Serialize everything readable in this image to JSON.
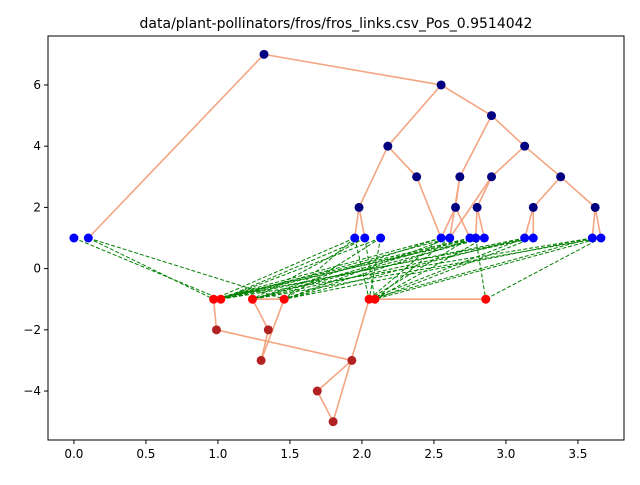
{
  "chart_data": {
    "type": "scatter",
    "title": "data/plant-pollinators/fros/fros_links.csv_Pos_0.9514042",
    "xlabel": "",
    "ylabel": "",
    "xlim": [
      -0.18,
      3.82
    ],
    "ylim": [
      -5.6,
      7.6
    ],
    "xticks": [
      0.0,
      0.5,
      1.0,
      1.5,
      2.0,
      2.5,
      3.0,
      3.5
    ],
    "xtick_labels": [
      "0.0",
      "0.5",
      "1.0",
      "1.5",
      "2.0",
      "2.5",
      "3.0",
      "3.5"
    ],
    "yticks": [
      -4,
      -2,
      0,
      2,
      4,
      6
    ],
    "ytick_labels": [
      "−4",
      "−2",
      "0",
      "2",
      "4",
      "6"
    ],
    "grid": false,
    "legend": "none",
    "colors": {
      "tree_edge": "#f4a582",
      "link_edge": "#008000",
      "blue_node": "#0000ff",
      "navy_node": "#000080",
      "red_node": "#ff0000",
      "brown_node": "#b22222"
    },
    "nodes": [
      {
        "x": 1.32,
        "y": 7,
        "color": "#000080"
      },
      {
        "x": 2.55,
        "y": 6,
        "color": "#000080"
      },
      {
        "x": 2.9,
        "y": 5,
        "color": "#000080"
      },
      {
        "x": 2.18,
        "y": 4,
        "color": "#000080"
      },
      {
        "x": 3.13,
        "y": 4,
        "color": "#000080"
      },
      {
        "x": 1.98,
        "y": 2,
        "color": "#000080"
      },
      {
        "x": 2.38,
        "y": 3,
        "color": "#000080"
      },
      {
        "x": 2.68,
        "y": 3,
        "color": "#000080"
      },
      {
        "x": 2.9,
        "y": 3,
        "color": "#000080"
      },
      {
        "x": 3.38,
        "y": 3,
        "color": "#000080"
      },
      {
        "x": 2.65,
        "y": 2,
        "color": "#000080"
      },
      {
        "x": 2.8,
        "y": 2,
        "color": "#000080"
      },
      {
        "x": 3.19,
        "y": 2,
        "color": "#000080"
      },
      {
        "x": 3.62,
        "y": 2,
        "color": "#000080"
      },
      {
        "x": 0.0,
        "y": 1,
        "color": "#0000ff"
      },
      {
        "x": 0.1,
        "y": 1,
        "color": "#0000ff"
      },
      {
        "x": 1.95,
        "y": 1,
        "color": "#0000ff"
      },
      {
        "x": 2.02,
        "y": 1,
        "color": "#0000ff"
      },
      {
        "x": 2.13,
        "y": 1,
        "color": "#0000ff"
      },
      {
        "x": 2.55,
        "y": 1,
        "color": "#0000ff"
      },
      {
        "x": 2.61,
        "y": 1,
        "color": "#0000ff"
      },
      {
        "x": 2.75,
        "y": 1,
        "color": "#0000ff"
      },
      {
        "x": 2.79,
        "y": 1,
        "color": "#0000ff"
      },
      {
        "x": 2.85,
        "y": 1,
        "color": "#0000ff"
      },
      {
        "x": 3.13,
        "y": 1,
        "color": "#0000ff"
      },
      {
        "x": 3.19,
        "y": 1,
        "color": "#0000ff"
      },
      {
        "x": 3.6,
        "y": 1,
        "color": "#0000ff"
      },
      {
        "x": 3.66,
        "y": 1,
        "color": "#0000ff"
      },
      {
        "x": 0.97,
        "y": -1,
        "color": "#ff0000"
      },
      {
        "x": 1.02,
        "y": -1,
        "color": "#ff0000"
      },
      {
        "x": 1.24,
        "y": -1,
        "color": "#ff0000"
      },
      {
        "x": 1.46,
        "y": -1,
        "color": "#ff0000"
      },
      {
        "x": 2.05,
        "y": -1,
        "color": "#ff0000"
      },
      {
        "x": 2.09,
        "y": -1,
        "color": "#ff0000"
      },
      {
        "x": 2.86,
        "y": -1,
        "color": "#ff0000"
      },
      {
        "x": 0.99,
        "y": -2,
        "color": "#b22222"
      },
      {
        "x": 1.35,
        "y": -2,
        "color": "#b22222"
      },
      {
        "x": 1.3,
        "y": -3,
        "color": "#b22222"
      },
      {
        "x": 1.93,
        "y": -3,
        "color": "#b22222"
      },
      {
        "x": 1.69,
        "y": -4,
        "color": "#b22222"
      },
      {
        "x": 1.8,
        "y": -5,
        "color": "#b22222"
      }
    ],
    "tree_edges": [
      [
        [
          0.1,
          1
        ],
        [
          1.32,
          7
        ]
      ],
      [
        [
          1.32,
          7
        ],
        [
          2.55,
          6
        ]
      ],
      [
        [
          2.55,
          6
        ],
        [
          2.18,
          4
        ]
      ],
      [
        [
          2.55,
          6
        ],
        [
          2.9,
          5
        ]
      ],
      [
        [
          2.18,
          4
        ],
        [
          1.98,
          2
        ]
      ],
      [
        [
          2.18,
          4
        ],
        [
          2.38,
          3
        ]
      ],
      [
        [
          2.9,
          5
        ],
        [
          2.68,
          3
        ]
      ],
      [
        [
          2.9,
          5
        ],
        [
          3.13,
          4
        ]
      ],
      [
        [
          3.13,
          4
        ],
        [
          2.9,
          3
        ]
      ],
      [
        [
          3.13,
          4
        ],
        [
          3.38,
          3
        ]
      ],
      [
        [
          1.98,
          2
        ],
        [
          1.95,
          1
        ]
      ],
      [
        [
          1.98,
          2
        ],
        [
          2.02,
          1
        ]
      ],
      [
        [
          2.38,
          3
        ],
        [
          2.55,
          1
        ]
      ],
      [
        [
          2.68,
          3
        ],
        [
          2.65,
          2
        ]
      ],
      [
        [
          2.68,
          3
        ],
        [
          2.61,
          1
        ]
      ],
      [
        [
          2.65,
          2
        ],
        [
          2.55,
          1
        ]
      ],
      [
        [
          2.65,
          2
        ],
        [
          2.75,
          1
        ]
      ],
      [
        [
          2.9,
          3
        ],
        [
          2.8,
          2
        ]
      ],
      [
        [
          2.8,
          2
        ],
        [
          2.79,
          1
        ]
      ],
      [
        [
          2.8,
          2
        ],
        [
          2.85,
          1
        ]
      ],
      [
        [
          3.38,
          3
        ],
        [
          3.19,
          2
        ]
      ],
      [
        [
          3.38,
          3
        ],
        [
          3.62,
          2
        ]
      ],
      [
        [
          3.19,
          2
        ],
        [
          3.13,
          1
        ]
      ],
      [
        [
          3.19,
          2
        ],
        [
          3.19,
          1
        ]
      ],
      [
        [
          3.62,
          2
        ],
        [
          3.6,
          1
        ]
      ],
      [
        [
          3.62,
          2
        ],
        [
          3.66,
          1
        ]
      ],
      [
        [
          2.9,
          3
        ],
        [
          2.61,
          1
        ]
      ],
      [
        [
          0.97,
          -1
        ],
        [
          1.02,
          -1
        ]
      ],
      [
        [
          0.97,
          -1
        ],
        [
          0.99,
          -2
        ]
      ],
      [
        [
          0.99,
          -2
        ],
        [
          1.93,
          -3
        ]
      ],
      [
        [
          1.24,
          -1
        ],
        [
          1.35,
          -2
        ]
      ],
      [
        [
          1.35,
          -2
        ],
        [
          1.3,
          -3
        ]
      ],
      [
        [
          1.46,
          -1
        ],
        [
          1.3,
          -3
        ]
      ],
      [
        [
          1.24,
          -1
        ],
        [
          1.46,
          -1
        ]
      ],
      [
        [
          1.93,
          -3
        ],
        [
          1.69,
          -4
        ]
      ],
      [
        [
          1.69,
          -4
        ],
        [
          1.8,
          -5
        ]
      ],
      [
        [
          1.8,
          -5
        ],
        [
          2.05,
          -1
        ]
      ],
      [
        [
          2.05,
          -1
        ],
        [
          2.09,
          -1
        ]
      ],
      [
        [
          2.09,
          -1
        ],
        [
          2.86,
          -1
        ]
      ]
    ],
    "links": [
      [
        [
          0.0,
          1
        ],
        [
          1.02,
          -1
        ]
      ],
      [
        [
          0.1,
          1
        ],
        [
          0.97,
          -1
        ]
      ],
      [
        [
          0.1,
          1
        ],
        [
          1.46,
          -1
        ]
      ],
      [
        [
          1.95,
          1
        ],
        [
          0.97,
          -1
        ]
      ],
      [
        [
          1.95,
          1
        ],
        [
          1.46,
          -1
        ]
      ],
      [
        [
          1.95,
          1
        ],
        [
          2.05,
          -1
        ]
      ],
      [
        [
          2.02,
          1
        ],
        [
          1.02,
          -1
        ]
      ],
      [
        [
          2.02,
          1
        ],
        [
          1.24,
          -1
        ]
      ],
      [
        [
          2.02,
          1
        ],
        [
          2.09,
          -1
        ]
      ],
      [
        [
          2.13,
          1
        ],
        [
          1.02,
          -1
        ]
      ],
      [
        [
          2.13,
          1
        ],
        [
          1.46,
          -1
        ]
      ],
      [
        [
          2.13,
          1
        ],
        [
          2.05,
          -1
        ]
      ],
      [
        [
          2.55,
          1
        ],
        [
          0.97,
          -1
        ]
      ],
      [
        [
          2.55,
          1
        ],
        [
          1.24,
          -1
        ]
      ],
      [
        [
          2.55,
          1
        ],
        [
          2.05,
          -1
        ]
      ],
      [
        [
          2.61,
          1
        ],
        [
          1.02,
          -1
        ]
      ],
      [
        [
          2.61,
          1
        ],
        [
          1.46,
          -1
        ]
      ],
      [
        [
          2.61,
          1
        ],
        [
          2.09,
          -1
        ]
      ],
      [
        [
          2.75,
          1
        ],
        [
          0.97,
          -1
        ]
      ],
      [
        [
          2.75,
          1
        ],
        [
          1.24,
          -1
        ]
      ],
      [
        [
          2.75,
          1
        ],
        [
          2.05,
          -1
        ]
      ],
      [
        [
          2.79,
          1
        ],
        [
          1.02,
          -1
        ]
      ],
      [
        [
          2.79,
          1
        ],
        [
          1.46,
          -1
        ]
      ],
      [
        [
          2.79,
          1
        ],
        [
          2.86,
          -1
        ]
      ],
      [
        [
          2.85,
          1
        ],
        [
          0.97,
          -1
        ]
      ],
      [
        [
          2.85,
          1
        ],
        [
          1.24,
          -1
        ]
      ],
      [
        [
          2.85,
          1
        ],
        [
          2.09,
          -1
        ]
      ],
      [
        [
          3.13,
          1
        ],
        [
          1.02,
          -1
        ]
      ],
      [
        [
          3.13,
          1
        ],
        [
          1.46,
          -1
        ]
      ],
      [
        [
          3.13,
          1
        ],
        [
          2.05,
          -1
        ]
      ],
      [
        [
          3.19,
          1
        ],
        [
          0.97,
          -1
        ]
      ],
      [
        [
          3.19,
          1
        ],
        [
          1.24,
          -1
        ]
      ],
      [
        [
          3.19,
          1
        ],
        [
          2.09,
          -1
        ]
      ],
      [
        [
          3.6,
          1
        ],
        [
          1.02,
          -1
        ]
      ],
      [
        [
          3.6,
          1
        ],
        [
          1.46,
          -1
        ]
      ],
      [
        [
          3.6,
          1
        ],
        [
          2.05,
          -1
        ]
      ],
      [
        [
          3.66,
          1
        ],
        [
          1.24,
          -1
        ]
      ],
      [
        [
          3.66,
          1
        ],
        [
          2.09,
          -1
        ]
      ],
      [
        [
          3.66,
          1
        ],
        [
          2.86,
          -1
        ]
      ]
    ]
  }
}
